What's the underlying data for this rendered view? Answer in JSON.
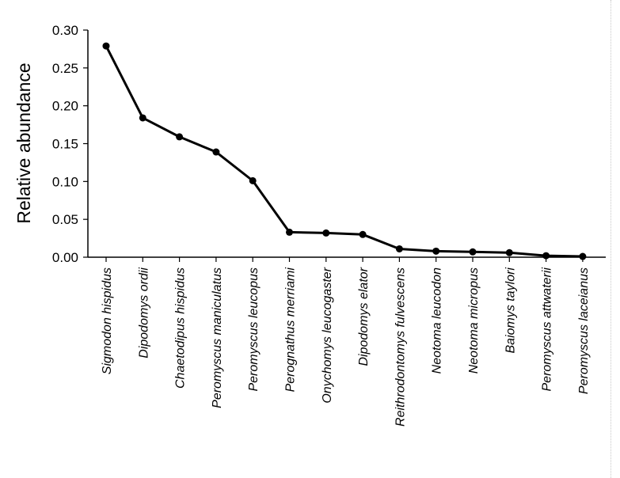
{
  "chart_data": {
    "type": "line",
    "title": "",
    "xlabel": "",
    "ylabel": "Relative abundance",
    "ylim": [
      0,
      0.3
    ],
    "yticks": [
      "0.00",
      "0.05",
      "0.10",
      "0.15",
      "0.20",
      "0.25",
      "0.30"
    ],
    "categories": [
      "Sigmodon hispidus",
      "Dipodomys ordii",
      "Chaetodipus hispidus",
      "Peromyscus maniculatus",
      "Peromyscus leucopus",
      "Perognathus merriami",
      "Onychomys leucogaster",
      "Dipodomys elator",
      "Reithrodontomys fulvescens",
      "Neotoma leucodon",
      "Neotoma micropus",
      "Baiomys taylori",
      "Peromyscus attwaterii",
      "Peromyscus laceianus"
    ],
    "series": [
      {
        "values": [
          0.279,
          0.184,
          0.159,
          0.139,
          0.101,
          0.033,
          0.032,
          0.03,
          0.011,
          0.008,
          0.007,
          0.006,
          0.002,
          0.001
        ]
      }
    ],
    "grid": false,
    "legend": "none",
    "line_color": "#000000",
    "marker": "filled-circle"
  }
}
